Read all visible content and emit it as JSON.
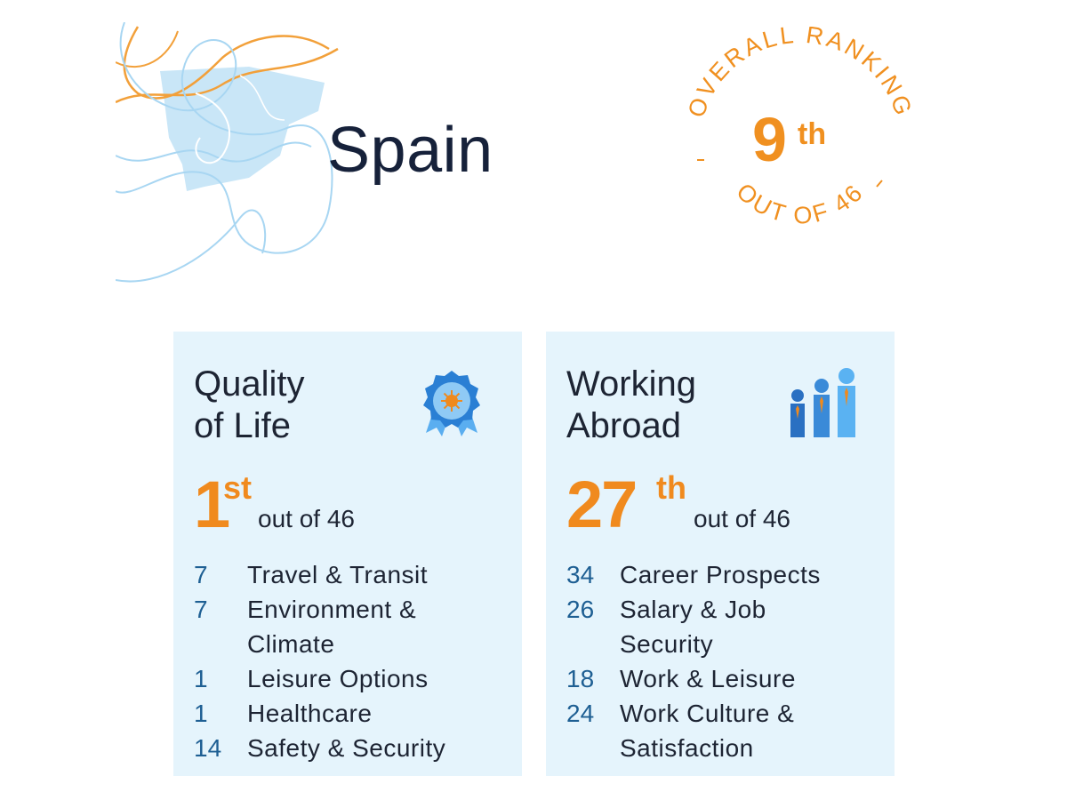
{
  "country": "Spain",
  "overall": {
    "ring_top": "OVERALL RANKING",
    "ring_bottom": "OUT OF 46",
    "rank_number": "9",
    "rank_suffix": "th"
  },
  "colors": {
    "accent": "#f08a1e",
    "number_blue": "#1e5f93",
    "card_bg": "#e5f4fc",
    "map_blue": "#c9e6f7"
  },
  "quality_of_life": {
    "title_line1": "Quality",
    "title_line2": "of Life",
    "icon": "award-rosette-icon",
    "rank_number": "1",
    "rank_suffix": "st",
    "out_of": "out of 46",
    "items": [
      {
        "rank": "7",
        "label": "Travel & Transit"
      },
      {
        "rank": "7",
        "label": "Environment &",
        "label2": "Climate"
      },
      {
        "rank": "1",
        "label": "Leisure Options"
      },
      {
        "rank": "1",
        "label": "Healthcare"
      },
      {
        "rank": "14",
        "label": "Safety & Security"
      }
    ]
  },
  "working_abroad": {
    "title_line1": "Working",
    "title_line2": "Abroad",
    "icon": "people-growth-icon",
    "rank_number": "27",
    "rank_suffix": "th",
    "out_of": "out of 46",
    "items": [
      {
        "rank": "34",
        "label": "Career Prospects"
      },
      {
        "rank": "26",
        "label": "Salary & Job",
        "label2": "Security"
      },
      {
        "rank": "18",
        "label": "Work & Leisure"
      },
      {
        "rank": "24",
        "label": "Work Culture &",
        "label2": "Satisfaction"
      }
    ]
  }
}
